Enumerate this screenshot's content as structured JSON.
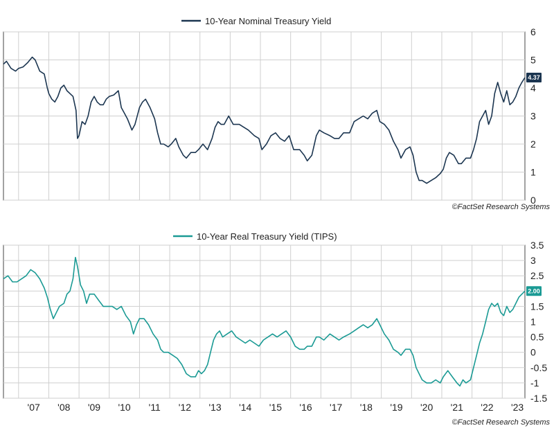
{
  "chart_data": [
    {
      "type": "line",
      "series": [
        {
          "name": "10-Year Nominal Treasury Yield",
          "color": "#1b3550"
        }
      ],
      "ylim": [
        0,
        6
      ],
      "yticks": [
        0,
        1,
        2,
        3,
        4,
        5,
        6
      ],
      "ytick_labels": [
        "0",
        "1",
        "2",
        "3",
        "4",
        "5",
        "6"
      ],
      "xlim": [
        2006.5,
        2023.75
      ],
      "last_value": 4.37,
      "last_value_label": "4.37",
      "credit": "©FactSet Research Systems",
      "grid": true,
      "points": [
        [
          2006.5,
          4.85
        ],
        [
          2006.6,
          4.95
        ],
        [
          2006.75,
          4.7
        ],
        [
          2006.9,
          4.6
        ],
        [
          2007.0,
          4.7
        ],
        [
          2007.15,
          4.75
        ],
        [
          2007.3,
          4.9
        ],
        [
          2007.45,
          5.1
        ],
        [
          2007.55,
          5.0
        ],
        [
          2007.7,
          4.6
        ],
        [
          2007.85,
          4.5
        ],
        [
          2007.95,
          4.0
        ],
        [
          2008.0,
          3.8
        ],
        [
          2008.1,
          3.6
        ],
        [
          2008.2,
          3.5
        ],
        [
          2008.3,
          3.7
        ],
        [
          2008.4,
          4.0
        ],
        [
          2008.5,
          4.1
        ],
        [
          2008.6,
          3.9
        ],
        [
          2008.7,
          3.8
        ],
        [
          2008.8,
          3.7
        ],
        [
          2008.9,
          3.2
        ],
        [
          2008.95,
          2.2
        ],
        [
          2009.0,
          2.3
        ],
        [
          2009.1,
          2.8
        ],
        [
          2009.2,
          2.7
        ],
        [
          2009.3,
          3.0
        ],
        [
          2009.4,
          3.5
        ],
        [
          2009.5,
          3.7
        ],
        [
          2009.6,
          3.5
        ],
        [
          2009.7,
          3.4
        ],
        [
          2009.8,
          3.4
        ],
        [
          2009.9,
          3.6
        ],
        [
          2010.0,
          3.7
        ],
        [
          2010.15,
          3.75
        ],
        [
          2010.3,
          3.9
        ],
        [
          2010.4,
          3.3
        ],
        [
          2010.5,
          3.1
        ],
        [
          2010.6,
          2.9
        ],
        [
          2010.75,
          2.5
        ],
        [
          2010.85,
          2.7
        ],
        [
          2011.0,
          3.3
        ],
        [
          2011.1,
          3.5
        ],
        [
          2011.2,
          3.6
        ],
        [
          2011.35,
          3.3
        ],
        [
          2011.5,
          2.9
        ],
        [
          2011.6,
          2.4
        ],
        [
          2011.7,
          2.0
        ],
        [
          2011.8,
          2.0
        ],
        [
          2011.95,
          1.9
        ],
        [
          2012.05,
          2.0
        ],
        [
          2012.2,
          2.2
        ],
        [
          2012.3,
          1.9
        ],
        [
          2012.45,
          1.6
        ],
        [
          2012.55,
          1.5
        ],
        [
          2012.7,
          1.7
        ],
        [
          2012.85,
          1.7
        ],
        [
          2012.95,
          1.8
        ],
        [
          2013.1,
          2.0
        ],
        [
          2013.25,
          1.8
        ],
        [
          2013.4,
          2.2
        ],
        [
          2013.5,
          2.6
        ],
        [
          2013.6,
          2.8
        ],
        [
          2013.7,
          2.7
        ],
        [
          2013.8,
          2.7
        ],
        [
          2013.95,
          3.0
        ],
        [
          2014.1,
          2.7
        ],
        [
          2014.3,
          2.7
        ],
        [
          2014.45,
          2.6
        ],
        [
          2014.6,
          2.5
        ],
        [
          2014.8,
          2.3
        ],
        [
          2014.95,
          2.2
        ],
        [
          2015.05,
          1.8
        ],
        [
          2015.2,
          2.0
        ],
        [
          2015.35,
          2.3
        ],
        [
          2015.5,
          2.4
        ],
        [
          2015.65,
          2.2
        ],
        [
          2015.8,
          2.1
        ],
        [
          2015.95,
          2.3
        ],
        [
          2016.1,
          1.8
        ],
        [
          2016.3,
          1.8
        ],
        [
          2016.45,
          1.6
        ],
        [
          2016.55,
          1.4
        ],
        [
          2016.7,
          1.6
        ],
        [
          2016.85,
          2.3
        ],
        [
          2016.95,
          2.5
        ],
        [
          2017.1,
          2.4
        ],
        [
          2017.3,
          2.3
        ],
        [
          2017.45,
          2.2
        ],
        [
          2017.6,
          2.2
        ],
        [
          2017.75,
          2.4
        ],
        [
          2017.95,
          2.4
        ],
        [
          2018.1,
          2.8
        ],
        [
          2018.25,
          2.9
        ],
        [
          2018.4,
          3.0
        ],
        [
          2018.55,
          2.9
        ],
        [
          2018.7,
          3.1
        ],
        [
          2018.85,
          3.2
        ],
        [
          2018.95,
          2.8
        ],
        [
          2019.1,
          2.7
        ],
        [
          2019.25,
          2.5
        ],
        [
          2019.4,
          2.1
        ],
        [
          2019.55,
          1.8
        ],
        [
          2019.65,
          1.5
        ],
        [
          2019.8,
          1.8
        ],
        [
          2019.95,
          1.9
        ],
        [
          2020.05,
          1.6
        ],
        [
          2020.15,
          1.0
        ],
        [
          2020.25,
          0.7
        ],
        [
          2020.35,
          0.7
        ],
        [
          2020.5,
          0.6
        ],
        [
          2020.65,
          0.7
        ],
        [
          2020.8,
          0.8
        ],
        [
          2020.95,
          0.95
        ],
        [
          2021.05,
          1.1
        ],
        [
          2021.15,
          1.5
        ],
        [
          2021.25,
          1.7
        ],
        [
          2021.4,
          1.6
        ],
        [
          2021.55,
          1.3
        ],
        [
          2021.65,
          1.3
        ],
        [
          2021.8,
          1.5
        ],
        [
          2021.95,
          1.5
        ],
        [
          2022.05,
          1.8
        ],
        [
          2022.15,
          2.2
        ],
        [
          2022.25,
          2.8
        ],
        [
          2022.35,
          3.0
        ],
        [
          2022.45,
          3.2
        ],
        [
          2022.55,
          2.7
        ],
        [
          2022.65,
          3.0
        ],
        [
          2022.75,
          3.8
        ],
        [
          2022.85,
          4.2
        ],
        [
          2022.95,
          3.8
        ],
        [
          2023.05,
          3.5
        ],
        [
          2023.15,
          3.9
        ],
        [
          2023.25,
          3.4
        ],
        [
          2023.35,
          3.5
        ],
        [
          2023.45,
          3.7
        ],
        [
          2023.55,
          4.0
        ],
        [
          2023.65,
          4.2
        ],
        [
          2023.75,
          4.37
        ]
      ]
    },
    {
      "type": "line",
      "series": [
        {
          "name": "10-Year Real Treasury Yield (TIPS)",
          "color": "#1a9a94"
        }
      ],
      "ylim": [
        -1.5,
        3.5
      ],
      "yticks": [
        -1.5,
        -1,
        -0.5,
        0,
        0.5,
        1,
        1.5,
        2,
        2.5,
        3,
        3.5
      ],
      "ytick_labels": [
        "-1.5",
        "-1",
        "-0.5",
        "0",
        "0.5",
        "1",
        "1.5",
        "2",
        "2.5",
        "3",
        "3.5"
      ],
      "xlim": [
        2006.5,
        2023.75
      ],
      "xtick_labels": [
        "'07",
        "'08",
        "'09",
        "'10",
        "'11",
        "'12",
        "'13",
        "'14",
        "'15",
        "'16",
        "'17",
        "'18",
        "'19",
        "'20",
        "'21",
        "'22",
        "'23"
      ],
      "last_value": 2.0,
      "last_value_label": "2.00",
      "credit": "©FactSet Research Systems",
      "grid": true,
      "points": [
        [
          2006.5,
          2.4
        ],
        [
          2006.65,
          2.5
        ],
        [
          2006.8,
          2.3
        ],
        [
          2006.95,
          2.3
        ],
        [
          2007.1,
          2.4
        ],
        [
          2007.25,
          2.5
        ],
        [
          2007.4,
          2.7
        ],
        [
          2007.55,
          2.6
        ],
        [
          2007.7,
          2.4
        ],
        [
          2007.85,
          2.1
        ],
        [
          2007.95,
          1.8
        ],
        [
          2008.05,
          1.4
        ],
        [
          2008.15,
          1.1
        ],
        [
          2008.25,
          1.3
        ],
        [
          2008.35,
          1.5
        ],
        [
          2008.5,
          1.6
        ],
        [
          2008.6,
          1.9
        ],
        [
          2008.7,
          2.0
        ],
        [
          2008.8,
          2.4
        ],
        [
          2008.88,
          3.1
        ],
        [
          2008.95,
          2.8
        ],
        [
          2009.05,
          2.2
        ],
        [
          2009.15,
          2.0
        ],
        [
          2009.25,
          1.6
        ],
        [
          2009.35,
          1.9
        ],
        [
          2009.5,
          1.9
        ],
        [
          2009.65,
          1.7
        ],
        [
          2009.8,
          1.5
        ],
        [
          2009.95,
          1.5
        ],
        [
          2010.1,
          1.5
        ],
        [
          2010.25,
          1.4
        ],
        [
          2010.4,
          1.5
        ],
        [
          2010.55,
          1.2
        ],
        [
          2010.7,
          1.0
        ],
        [
          2010.8,
          0.6
        ],
        [
          2010.9,
          0.9
        ],
        [
          2011.0,
          1.1
        ],
        [
          2011.15,
          1.1
        ],
        [
          2011.3,
          0.9
        ],
        [
          2011.45,
          0.6
        ],
        [
          2011.6,
          0.4
        ],
        [
          2011.7,
          0.1
        ],
        [
          2011.8,
          0.0
        ],
        [
          2011.95,
          0.0
        ],
        [
          2012.1,
          -0.1
        ],
        [
          2012.25,
          -0.2
        ],
        [
          2012.4,
          -0.4
        ],
        [
          2012.55,
          -0.7
        ],
        [
          2012.7,
          -0.8
        ],
        [
          2012.85,
          -0.8
        ],
        [
          2012.95,
          -0.6
        ],
        [
          2013.05,
          -0.7
        ],
        [
          2013.15,
          -0.6
        ],
        [
          2013.25,
          -0.4
        ],
        [
          2013.35,
          0.0
        ],
        [
          2013.45,
          0.4
        ],
        [
          2013.55,
          0.6
        ],
        [
          2013.65,
          0.7
        ],
        [
          2013.75,
          0.5
        ],
        [
          2013.9,
          0.6
        ],
        [
          2014.05,
          0.7
        ],
        [
          2014.2,
          0.5
        ],
        [
          2014.35,
          0.4
        ],
        [
          2014.5,
          0.3
        ],
        [
          2014.65,
          0.4
        ],
        [
          2014.8,
          0.3
        ],
        [
          2014.95,
          0.2
        ],
        [
          2015.1,
          0.4
        ],
        [
          2015.25,
          0.5
        ],
        [
          2015.4,
          0.6
        ],
        [
          2015.55,
          0.5
        ],
        [
          2015.7,
          0.6
        ],
        [
          2015.85,
          0.7
        ],
        [
          2016.0,
          0.5
        ],
        [
          2016.15,
          0.2
        ],
        [
          2016.3,
          0.1
        ],
        [
          2016.45,
          0.1
        ],
        [
          2016.55,
          0.2
        ],
        [
          2016.7,
          0.2
        ],
        [
          2016.85,
          0.5
        ],
        [
          2016.95,
          0.5
        ],
        [
          2017.1,
          0.4
        ],
        [
          2017.3,
          0.6
        ],
        [
          2017.45,
          0.5
        ],
        [
          2017.6,
          0.4
        ],
        [
          2017.75,
          0.5
        ],
        [
          2017.95,
          0.6
        ],
        [
          2018.1,
          0.7
        ],
        [
          2018.25,
          0.8
        ],
        [
          2018.4,
          0.9
        ],
        [
          2018.55,
          0.8
        ],
        [
          2018.7,
          0.9
        ],
        [
          2018.85,
          1.1
        ],
        [
          2018.95,
          0.9
        ],
        [
          2019.1,
          0.6
        ],
        [
          2019.25,
          0.4
        ],
        [
          2019.4,
          0.1
        ],
        [
          2019.55,
          0.0
        ],
        [
          2019.65,
          -0.1
        ],
        [
          2019.8,
          0.1
        ],
        [
          2019.95,
          0.1
        ],
        [
          2020.05,
          -0.1
        ],
        [
          2020.15,
          -0.5
        ],
        [
          2020.25,
          -0.7
        ],
        [
          2020.35,
          -0.9
        ],
        [
          2020.5,
          -1.0
        ],
        [
          2020.65,
          -1.0
        ],
        [
          2020.8,
          -0.9
        ],
        [
          2020.95,
          -1.0
        ],
        [
          2021.05,
          -0.8
        ],
        [
          2021.2,
          -0.6
        ],
        [
          2021.35,
          -0.8
        ],
        [
          2021.5,
          -1.0
        ],
        [
          2021.6,
          -1.1
        ],
        [
          2021.7,
          -0.9
        ],
        [
          2021.8,
          -1.0
        ],
        [
          2021.95,
          -0.9
        ],
        [
          2022.05,
          -0.5
        ],
        [
          2022.15,
          -0.1
        ],
        [
          2022.25,
          0.3
        ],
        [
          2022.35,
          0.6
        ],
        [
          2022.45,
          1.0
        ],
        [
          2022.55,
          1.4
        ],
        [
          2022.65,
          1.6
        ],
        [
          2022.75,
          1.5
        ],
        [
          2022.85,
          1.6
        ],
        [
          2022.95,
          1.3
        ],
        [
          2023.05,
          1.2
        ],
        [
          2023.15,
          1.5
        ],
        [
          2023.25,
          1.3
        ],
        [
          2023.35,
          1.4
        ],
        [
          2023.45,
          1.6
        ],
        [
          2023.55,
          1.8
        ],
        [
          2023.65,
          1.9
        ],
        [
          2023.75,
          2.0
        ]
      ]
    }
  ]
}
